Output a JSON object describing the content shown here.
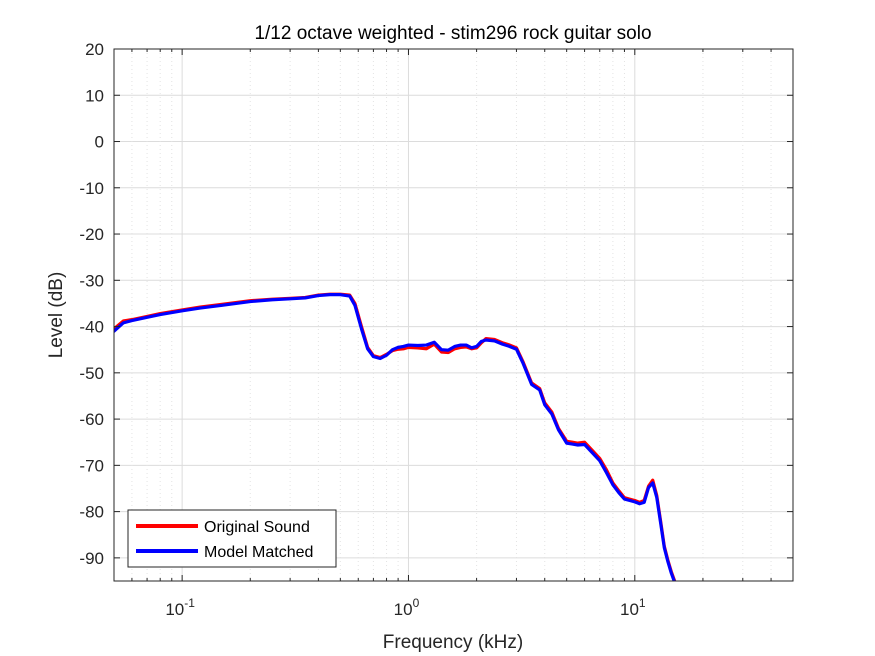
{
  "chart_data": {
    "type": "line",
    "title": "1/12 octave weighted - stim296 rock guitar solo",
    "xlabel": "Frequency (kHz)",
    "ylabel": "Level (dB)",
    "xscale": "log",
    "xlim": [
      0.05,
      50
    ],
    "ylim": [
      -95,
      20
    ],
    "yticks": [
      20,
      10,
      0,
      -10,
      -20,
      -30,
      -40,
      -50,
      -60,
      -70,
      -80,
      -90
    ],
    "xticks": [
      {
        "value": 0.1,
        "base": "10",
        "exp": "-1"
      },
      {
        "value": 1,
        "base": "10",
        "exp": "0"
      },
      {
        "value": 10,
        "base": "10",
        "exp": "1"
      }
    ],
    "grid": true,
    "legend_location": "bottom-left",
    "series": [
      {
        "name": "Original Sound",
        "color": "#ff0000",
        "x": [
          0.05,
          0.055,
          0.06,
          0.07,
          0.08,
          0.1,
          0.12,
          0.15,
          0.2,
          0.25,
          0.3,
          0.35,
          0.4,
          0.45,
          0.5,
          0.55,
          0.58,
          0.62,
          0.66,
          0.7,
          0.75,
          0.8,
          0.85,
          0.9,
          0.95,
          1.0,
          1.1,
          1.2,
          1.3,
          1.4,
          1.5,
          1.6,
          1.7,
          1.8,
          1.9,
          2.0,
          2.1,
          2.2,
          2.4,
          2.6,
          2.8,
          3.0,
          3.2,
          3.5,
          3.8,
          4.0,
          4.3,
          4.6,
          5.0,
          5.3,
          5.6,
          6.0,
          6.5,
          7.0,
          7.5,
          8.0,
          8.5,
          9.0,
          9.5,
          10.0,
          10.5,
          11.0,
          11.5,
          12.0,
          12.5,
          13.0,
          13.5,
          14.0,
          14.5,
          15.0,
          15.5,
          15.7
        ],
        "y": [
          -40.5,
          -38.8,
          -38.5,
          -37.8,
          -37.2,
          -36.4,
          -35.8,
          -35.2,
          -34.4,
          -34.1,
          -33.9,
          -33.7,
          -33.2,
          -33.0,
          -33.0,
          -33.2,
          -35.0,
          -40.0,
          -44.5,
          -46.3,
          -46.7,
          -46.0,
          -45.2,
          -44.9,
          -44.8,
          -44.5,
          -44.6,
          -44.8,
          -43.8,
          -45.5,
          -45.6,
          -44.8,
          -44.5,
          -44.4,
          -44.8,
          -44.6,
          -43.5,
          -42.6,
          -42.8,
          -43.5,
          -44.0,
          -44.6,
          -47.5,
          -52.2,
          -53.4,
          -56.5,
          -58.5,
          -62.0,
          -64.8,
          -65.0,
          -65.2,
          -65.0,
          -66.8,
          -68.5,
          -71.0,
          -73.8,
          -75.5,
          -77.0,
          -77.3,
          -77.6,
          -78.0,
          -77.6,
          -74.5,
          -73.2,
          -76.5,
          -82.0,
          -87.5,
          -90.5,
          -93.0,
          -95.0,
          -97.0,
          -98.0
        ]
      },
      {
        "name": "Model Matched",
        "color": "#0000ff",
        "x": [
          0.05,
          0.055,
          0.06,
          0.07,
          0.08,
          0.1,
          0.12,
          0.15,
          0.2,
          0.25,
          0.3,
          0.35,
          0.4,
          0.45,
          0.5,
          0.55,
          0.58,
          0.62,
          0.66,
          0.7,
          0.75,
          0.8,
          0.85,
          0.9,
          0.95,
          1.0,
          1.1,
          1.2,
          1.3,
          1.4,
          1.5,
          1.6,
          1.7,
          1.8,
          1.9,
          2.0,
          2.1,
          2.2,
          2.4,
          2.6,
          2.8,
          3.0,
          3.2,
          3.5,
          3.8,
          4.0,
          4.3,
          4.6,
          5.0,
          5.3,
          5.6,
          6.0,
          6.5,
          7.0,
          7.5,
          8.0,
          8.5,
          9.0,
          9.5,
          10.0,
          10.5,
          11.0,
          11.5,
          12.0,
          12.5,
          13.0,
          13.5,
          14.0,
          14.5,
          15.0,
          15.5,
          15.7
        ],
        "y": [
          -41.0,
          -39.2,
          -38.7,
          -38.0,
          -37.4,
          -36.6,
          -36.0,
          -35.4,
          -34.6,
          -34.2,
          -34.0,
          -33.8,
          -33.3,
          -33.1,
          -33.1,
          -33.4,
          -35.4,
          -40.5,
          -44.8,
          -46.5,
          -46.9,
          -46.2,
          -45.0,
          -44.5,
          -44.3,
          -44.0,
          -44.1,
          -44.0,
          -43.4,
          -45.0,
          -45.1,
          -44.3,
          -44.0,
          -44.0,
          -44.6,
          -44.3,
          -43.2,
          -42.9,
          -43.1,
          -43.8,
          -44.3,
          -44.9,
          -47.8,
          -52.5,
          -53.7,
          -56.9,
          -58.9,
          -62.3,
          -65.2,
          -65.4,
          -65.6,
          -65.5,
          -67.3,
          -69.0,
          -71.6,
          -74.2,
          -75.9,
          -77.3,
          -77.6,
          -77.9,
          -78.3,
          -78.0,
          -74.8,
          -73.8,
          -76.9,
          -82.4,
          -87.8,
          -90.8,
          -93.3,
          -95.3,
          -97.3,
          -98.3
        ]
      }
    ]
  }
}
